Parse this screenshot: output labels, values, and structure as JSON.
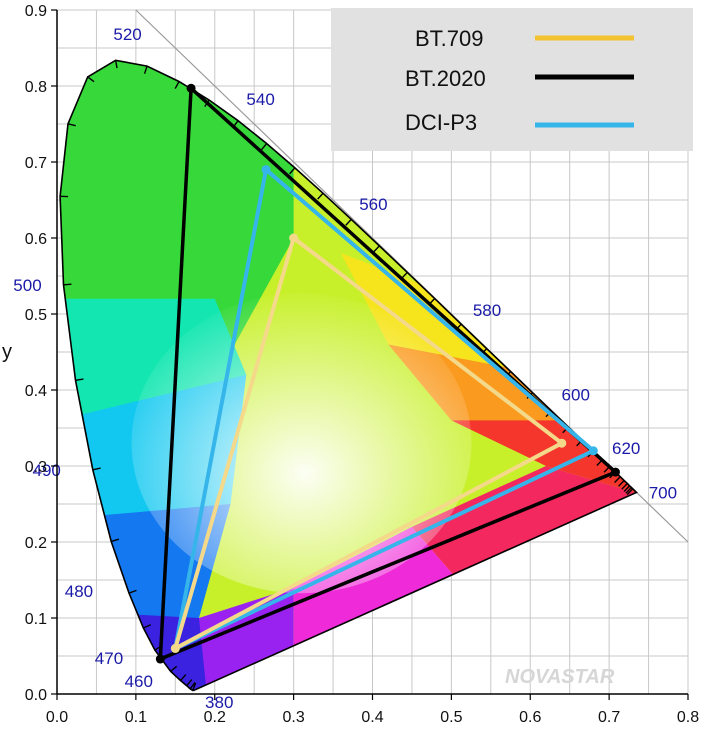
{
  "chart_data": {
    "type": "line",
    "ylabel": "y",
    "xlim": [
      0.0,
      0.8
    ],
    "ylim": [
      0.0,
      0.9
    ],
    "x_ticks": [
      "0.0",
      "0.1",
      "0.2",
      "0.3",
      "0.4",
      "0.5",
      "0.6",
      "0.7",
      "0.8"
    ],
    "y_ticks": [
      "0.0",
      "0.1",
      "0.2",
      "0.3",
      "0.4",
      "0.5",
      "0.6",
      "0.7",
      "0.8",
      "0.9"
    ],
    "grid": true,
    "legend_position": "top-right",
    "series": [
      {
        "name": "BT.709",
        "color": "#f2c230",
        "points": [
          [
            0.64,
            0.33
          ],
          [
            0.3,
            0.6
          ],
          [
            0.15,
            0.06
          ]
        ]
      },
      {
        "name": "BT.2020",
        "color": "#000000",
        "points": [
          [
            0.708,
            0.292
          ],
          [
            0.17,
            0.797
          ],
          [
            0.131,
            0.046
          ]
        ]
      },
      {
        "name": "DCI-P3",
        "color": "#36b5ea",
        "points": [
          [
            0.68,
            0.32
          ],
          [
            0.265,
            0.69
          ],
          [
            0.15,
            0.06
          ]
        ]
      }
    ],
    "spectral_locus_labels": [
      {
        "label": "380",
        "x": 0.175,
        "y": 0.005
      },
      {
        "label": "460",
        "x": 0.144,
        "y": 0.03
      },
      {
        "label": "470",
        "x": 0.124,
        "y": 0.058
      },
      {
        "label": "480",
        "x": 0.091,
        "y": 0.133
      },
      {
        "label": "490",
        "x": 0.045,
        "y": 0.295
      },
      {
        "label": "500",
        "x": 0.008,
        "y": 0.538
      },
      {
        "label": "520",
        "x": 0.074,
        "y": 0.834
      },
      {
        "label": "540",
        "x": 0.23,
        "y": 0.754
      },
      {
        "label": "560",
        "x": 0.373,
        "y": 0.624
      },
      {
        "label": "580",
        "x": 0.512,
        "y": 0.487
      },
      {
        "label": "600",
        "x": 0.627,
        "y": 0.373
      },
      {
        "label": "620",
        "x": 0.691,
        "y": 0.308
      },
      {
        "label": "700",
        "x": 0.735,
        "y": 0.265
      }
    ]
  },
  "watermark": "NOVASTAR"
}
